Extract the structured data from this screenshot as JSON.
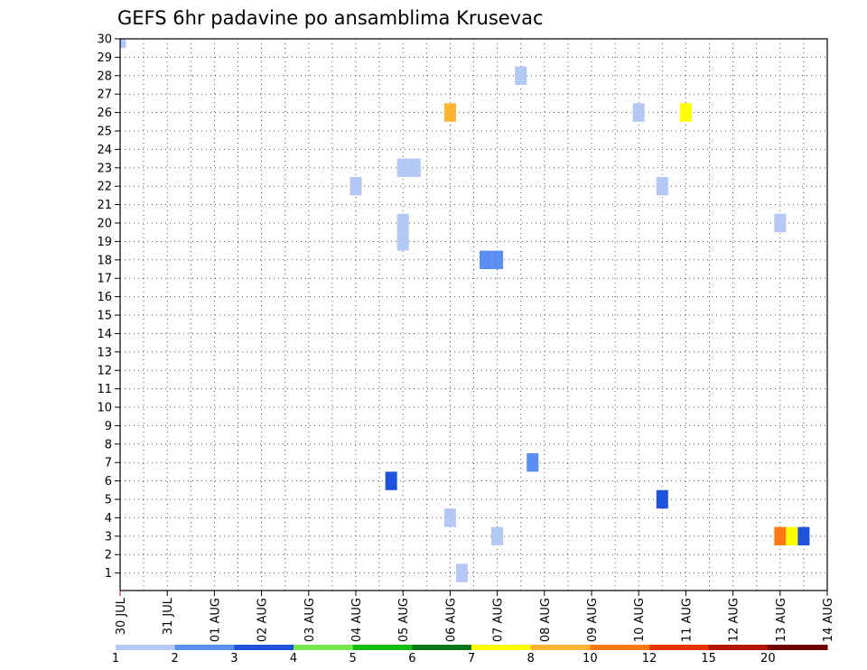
{
  "chart_data": {
    "type": "heatmap",
    "title": "GEFS 6hr padavine po ansamblima Krusevac",
    "xlabel": "",
    "ylabel": "",
    "ylim": [
      0,
      30
    ],
    "grid": true,
    "x_ticks": [
      "30 JUL",
      "31 JUL",
      "01 AUG",
      "02 AUG",
      "03 AUG",
      "04 AUG",
      "05 AUG",
      "06 AUG",
      "07 AUG",
      "08 AUG",
      "09 AUG",
      "10 AUG",
      "11 AUG",
      "12 AUG",
      "13 AUG",
      "14 AUG"
    ],
    "y_ticks": [
      1,
      2,
      3,
      4,
      5,
      6,
      7,
      8,
      9,
      10,
      11,
      12,
      13,
      14,
      15,
      16,
      17,
      18,
      19,
      20,
      21,
      22,
      23,
      24,
      25,
      26,
      27,
      28,
      29,
      30
    ],
    "legend": {
      "placement": "bottom",
      "labels": [
        "1",
        "2",
        "3",
        "4",
        "5",
        "6",
        "7",
        "8",
        "10",
        "12",
        "15",
        "20"
      ],
      "colors": [
        "#b3c8f5",
        "#5a8ef0",
        "#1e52dc",
        "#78e650",
        "#14be14",
        "#0a7814",
        "#ffff00",
        "#ffb432",
        "#ff7814",
        "#e63200",
        "#b41400",
        "#6e0000"
      ]
    },
    "cells": [
      {
        "date": "30 JUL 00Z",
        "member": 30,
        "value": 1.5
      },
      {
        "date": "04 AUG 00Z",
        "member": 22,
        "value": 1.5
      },
      {
        "date": "04 AUG 18Z",
        "member": 6,
        "value": 3.5
      },
      {
        "date": "05 AUG 00Z",
        "member": 23,
        "value": 1.5
      },
      {
        "date": "05 AUG 06Z",
        "member": 23,
        "value": 1.5
      },
      {
        "date": "05 AUG 00Z",
        "member": 20,
        "value": 1.5
      },
      {
        "date": "05 AUG 00Z",
        "member": 19,
        "value": 1.5
      },
      {
        "date": "06 AUG 00Z",
        "member": 26,
        "value": 9
      },
      {
        "date": "06 AUG 00Z",
        "member": 4,
        "value": 1.5
      },
      {
        "date": "06 AUG 06Z",
        "member": 1,
        "value": 1.5
      },
      {
        "date": "06 AUG 18Z",
        "member": 18,
        "value": 2.5
      },
      {
        "date": "07 AUG 00Z",
        "member": 18,
        "value": 2.5
      },
      {
        "date": "07 AUG 00Z",
        "member": 3,
        "value": 1.5
      },
      {
        "date": "07 AUG 12Z",
        "member": 28,
        "value": 1.5
      },
      {
        "date": "07 AUG 18Z",
        "member": 7,
        "value": 2.5
      },
      {
        "date": "10 AUG 00Z",
        "member": 26,
        "value": 1.5
      },
      {
        "date": "10 AUG 12Z",
        "member": 22,
        "value": 1.5
      },
      {
        "date": "10 AUG 12Z",
        "member": 5,
        "value": 3.5
      },
      {
        "date": "11 AUG 00Z",
        "member": 26,
        "value": 7.5
      },
      {
        "date": "13 AUG 00Z",
        "member": 20,
        "value": 1.5
      },
      {
        "date": "13 AUG 00Z",
        "member": 3,
        "value": 11
      },
      {
        "date": "13 AUG 06Z",
        "member": 3,
        "value": 7.5
      },
      {
        "date": "13 AUG 12Z",
        "member": 3,
        "value": 3.5
      }
    ]
  }
}
